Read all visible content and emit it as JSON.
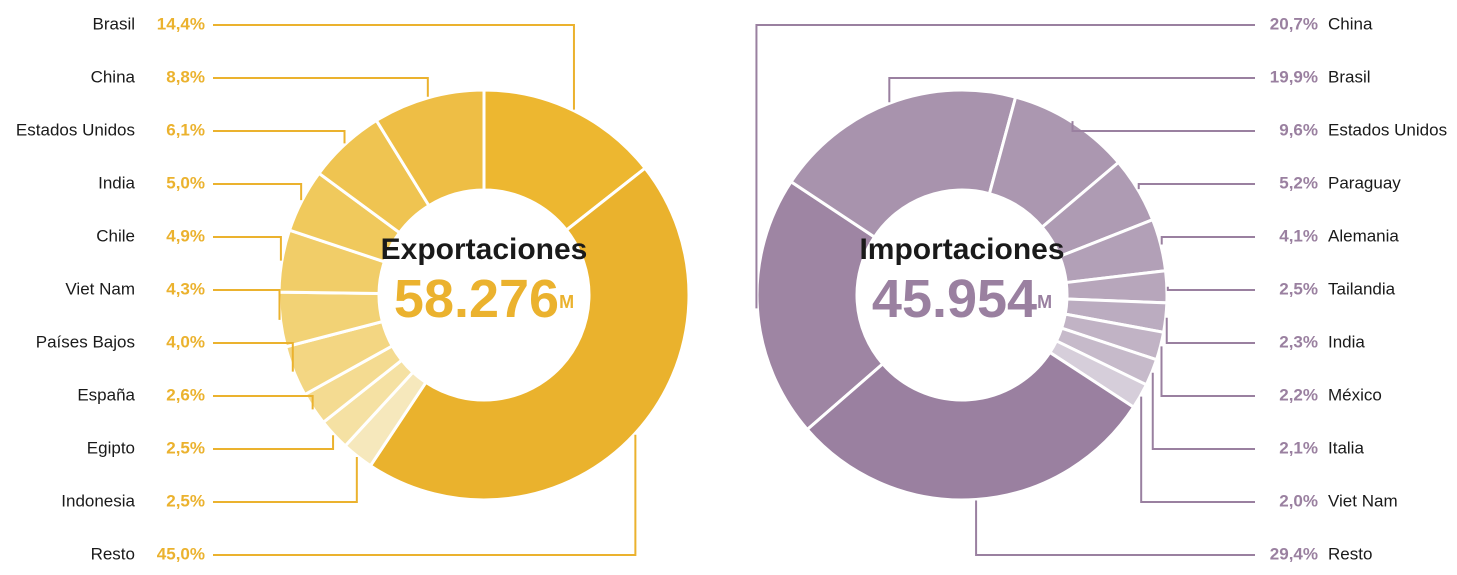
{
  "chart_data": [
    {
      "type": "donut",
      "title": "Exportaciones",
      "center_value": "58.276",
      "center_unit": "M",
      "label_color": "#EBB22E",
      "categories": [
        "Brasil",
        "China",
        "Estados Unidos",
        "India",
        "Chile",
        "Viet Nam",
        "Países Bajos",
        "España",
        "Egipto",
        "Indonesia",
        "Resto"
      ],
      "values": [
        14.4,
        8.8,
        6.1,
        5.0,
        4.9,
        4.3,
        4.0,
        2.6,
        2.5,
        2.5,
        45.0
      ],
      "value_labels": [
        "14,4%",
        "8,8%",
        "6,1%",
        "5,0%",
        "4,9%",
        "4,3%",
        "4,0%",
        "2,6%",
        "2,5%",
        "2,5%",
        "45,0%"
      ],
      "colors": [
        "#EDB730",
        "#EEBE45",
        "#EFC451",
        "#F0C95C",
        "#F1CD68",
        "#F2D275",
        "#F3D682",
        "#F4DB91",
        "#F5E1A3",
        "#F6E8BC",
        "#EAB22D"
      ]
    },
    {
      "type": "donut",
      "title": "Importaciones",
      "center_value": "45.954",
      "center_unit": "M",
      "label_color": "#9A80A0",
      "categories": [
        "China",
        "Brasil",
        "Estados Unidos",
        "Paraguay",
        "Alemania",
        "Tailandia",
        "India",
        "México",
        "Italia",
        "Viet Nam",
        "Resto"
      ],
      "values": [
        20.7,
        19.9,
        9.6,
        5.2,
        4.1,
        2.5,
        2.3,
        2.2,
        2.1,
        2.0,
        29.4
      ],
      "value_labels": [
        "20,7%",
        "19,9%",
        "9,6%",
        "5,2%",
        "4,1%",
        "2,5%",
        "2,3%",
        "2,2%",
        "2,1%",
        "2,0%",
        "29,4%"
      ],
      "colors": [
        "#9E85A3",
        "#A893AD",
        "#AB97B0",
        "#AE9BB3",
        "#B2A0B7",
        "#B7A6BB",
        "#BBACC0",
        "#C1B3C5",
        "#C6BACA",
        "#D6CEDA",
        "#9A80A0"
      ]
    }
  ]
}
